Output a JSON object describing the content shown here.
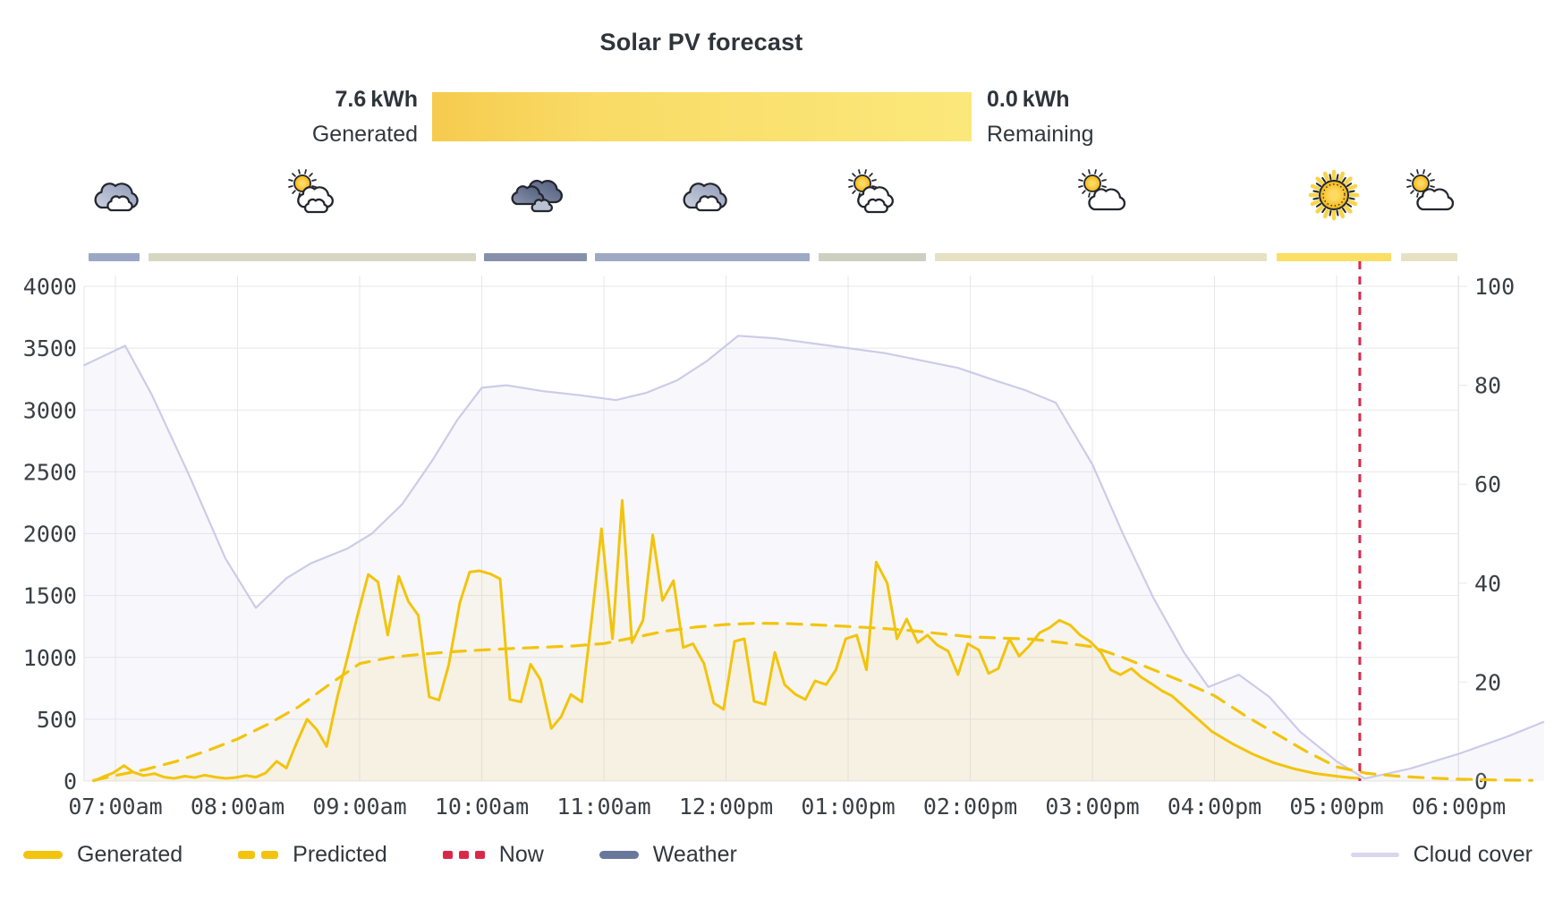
{
  "title": "Solar PV forecast",
  "progress": {
    "generated_value": "7.6 kWh",
    "generated_label": "Generated",
    "remaining_value": "0.0 kWh",
    "remaining_label": "Remaining",
    "bar_gradient": [
      "#F6CB4E",
      "#F9DB66",
      "#FBE87B"
    ]
  },
  "weather": {
    "segments": [
      {
        "icon": "cloudy-icon",
        "type": "cloudy",
        "start_hour": 6.78,
        "end_hour": 7.2,
        "bar_color": "#9BA7C4"
      },
      {
        "icon": "partly-sunny-icon",
        "type": "partly-sunny",
        "start_hour": 7.27,
        "end_hour": 9.95,
        "bar_color": "#D6D7C3"
      },
      {
        "icon": "dark-clouds-icon",
        "type": "dark-cloudy",
        "start_hour": 10.02,
        "end_hour": 10.86,
        "bar_color": "#8690AC"
      },
      {
        "icon": "cloudy-icon",
        "type": "cloudy",
        "start_hour": 10.93,
        "end_hour": 12.69,
        "bar_color": "#9EA9C4"
      },
      {
        "icon": "partly-sunny-icon",
        "type": "partly-sunny",
        "start_hour": 12.76,
        "end_hour": 13.64,
        "bar_color": "#CDD0C0"
      },
      {
        "icon": "mostly-sunny-icon",
        "type": "mostly-sunny",
        "start_hour": 13.71,
        "end_hour": 16.43,
        "bar_color": "#E7E1C4"
      },
      {
        "icon": "sunny-icon",
        "type": "sunny",
        "start_hour": 16.51,
        "end_hour": 17.45,
        "bar_color": "#FBDE64"
      },
      {
        "icon": "mostly-sunny-icon",
        "type": "mostly-sunny",
        "start_hour": 17.53,
        "end_hour": 17.99,
        "bar_color": "#E7E1C4"
      }
    ]
  },
  "chart_data": {
    "type": "line",
    "title": "Solar PV forecast",
    "x_domain_hours": [
      6.74,
      18.78
    ],
    "x_ticks": [
      {
        "hour": 7,
        "label": "07:00am"
      },
      {
        "hour": 8,
        "label": "08:00am"
      },
      {
        "hour": 9,
        "label": "09:00am"
      },
      {
        "hour": 10,
        "label": "10:00am"
      },
      {
        "hour": 11,
        "label": "11:00am"
      },
      {
        "hour": 12,
        "label": "12:00pm"
      },
      {
        "hour": 13,
        "label": "01:00pm"
      },
      {
        "hour": 14,
        "label": "02:00pm"
      },
      {
        "hour": 15,
        "label": "03:00pm"
      },
      {
        "hour": 16,
        "label": "04:00pm"
      },
      {
        "hour": 17,
        "label": "05:00pm"
      },
      {
        "hour": 18,
        "label": "06:00pm"
      }
    ],
    "left_axis": {
      "min": 0,
      "max": 4000,
      "ticks": [
        0,
        500,
        1000,
        1500,
        2000,
        2500,
        3000,
        3500,
        4000
      ]
    },
    "right_axis": {
      "min": 0,
      "max": 100,
      "ticks": [
        0,
        20,
        40,
        60,
        80,
        100
      ]
    },
    "grid": true,
    "now": {
      "hour": 17.19,
      "label": "Now",
      "color": "#D9294B"
    },
    "series": [
      {
        "name": "Generated",
        "axis": "left",
        "style": "solid",
        "color": "#F2C40D",
        "fill": "rgba(244,205,70,0.08)",
        "points": [
          [
            6.82,
            0
          ],
          [
            6.9,
            35
          ],
          [
            6.98,
            65
          ],
          [
            7.07,
            125
          ],
          [
            7.15,
            70
          ],
          [
            7.23,
            45
          ],
          [
            7.32,
            60
          ],
          [
            7.4,
            32
          ],
          [
            7.48,
            22
          ],
          [
            7.57,
            40
          ],
          [
            7.65,
            28
          ],
          [
            7.73,
            48
          ],
          [
            7.82,
            32
          ],
          [
            7.9,
            22
          ],
          [
            7.98,
            28
          ],
          [
            8.07,
            45
          ],
          [
            8.15,
            32
          ],
          [
            8.23,
            65
          ],
          [
            8.32,
            160
          ],
          [
            8.4,
            105
          ],
          [
            8.48,
            300
          ],
          [
            8.57,
            500
          ],
          [
            8.65,
            415
          ],
          [
            8.73,
            280
          ],
          [
            8.82,
            690
          ],
          [
            8.9,
            1000
          ],
          [
            8.98,
            1330
          ],
          [
            9.07,
            1670
          ],
          [
            9.15,
            1610
          ],
          [
            9.23,
            1180
          ],
          [
            9.32,
            1655
          ],
          [
            9.4,
            1450
          ],
          [
            9.48,
            1340
          ],
          [
            9.57,
            680
          ],
          [
            9.65,
            655
          ],
          [
            9.73,
            940
          ],
          [
            9.82,
            1440
          ],
          [
            9.9,
            1690
          ],
          [
            9.98,
            1700
          ],
          [
            10.07,
            1675
          ],
          [
            10.15,
            1635
          ],
          [
            10.23,
            660
          ],
          [
            10.32,
            640
          ],
          [
            10.4,
            945
          ],
          [
            10.48,
            820
          ],
          [
            10.57,
            425
          ],
          [
            10.65,
            520
          ],
          [
            10.73,
            700
          ],
          [
            10.82,
            640
          ],
          [
            10.9,
            1310
          ],
          [
            10.98,
            2040
          ],
          [
            11.07,
            1150
          ],
          [
            11.15,
            2270
          ],
          [
            11.23,
            1120
          ],
          [
            11.32,
            1300
          ],
          [
            11.4,
            1990
          ],
          [
            11.48,
            1460
          ],
          [
            11.57,
            1620
          ],
          [
            11.65,
            1080
          ],
          [
            11.73,
            1110
          ],
          [
            11.82,
            950
          ],
          [
            11.9,
            630
          ],
          [
            11.98,
            580
          ],
          [
            12.07,
            1130
          ],
          [
            12.15,
            1150
          ],
          [
            12.23,
            645
          ],
          [
            12.32,
            620
          ],
          [
            12.4,
            1040
          ],
          [
            12.48,
            780
          ],
          [
            12.57,
            700
          ],
          [
            12.65,
            660
          ],
          [
            12.73,
            810
          ],
          [
            12.82,
            780
          ],
          [
            12.9,
            900
          ],
          [
            12.98,
            1150
          ],
          [
            13.07,
            1180
          ],
          [
            13.15,
            900
          ],
          [
            13.23,
            1770
          ],
          [
            13.32,
            1600
          ],
          [
            13.4,
            1150
          ],
          [
            13.48,
            1310
          ],
          [
            13.57,
            1120
          ],
          [
            13.65,
            1180
          ],
          [
            13.73,
            1100
          ],
          [
            13.82,
            1050
          ],
          [
            13.9,
            860
          ],
          [
            13.98,
            1110
          ],
          [
            14.07,
            1060
          ],
          [
            14.15,
            870
          ],
          [
            14.23,
            910
          ],
          [
            14.32,
            1150
          ],
          [
            14.4,
            1010
          ],
          [
            14.48,
            1090
          ],
          [
            14.57,
            1200
          ],
          [
            14.65,
            1240
          ],
          [
            14.73,
            1300
          ],
          [
            14.82,
            1260
          ],
          [
            14.9,
            1180
          ],
          [
            14.98,
            1130
          ],
          [
            15.07,
            1040
          ],
          [
            15.15,
            900
          ],
          [
            15.23,
            860
          ],
          [
            15.32,
            910
          ],
          [
            15.4,
            840
          ],
          [
            15.48,
            790
          ],
          [
            15.57,
            730
          ],
          [
            15.65,
            690
          ],
          [
            15.73,
            620
          ],
          [
            15.82,
            540
          ],
          [
            15.9,
            470
          ],
          [
            15.98,
            400
          ],
          [
            16.15,
            300
          ],
          [
            16.32,
            215
          ],
          [
            16.48,
            150
          ],
          [
            16.65,
            100
          ],
          [
            16.82,
            62
          ],
          [
            16.98,
            42
          ],
          [
            17.1,
            28
          ],
          [
            17.19,
            22
          ]
        ]
      },
      {
        "name": "Predicted",
        "axis": "left",
        "style": "dashed",
        "color": "#F2C40D",
        "fill": "rgba(244,205,70,0.06)",
        "points": [
          [
            6.82,
            5
          ],
          [
            7.0,
            45
          ],
          [
            7.25,
            95
          ],
          [
            7.5,
            160
          ],
          [
            7.75,
            245
          ],
          [
            8.0,
            340
          ],
          [
            8.25,
            460
          ],
          [
            8.5,
            600
          ],
          [
            8.75,
            780
          ],
          [
            9.0,
            950
          ],
          [
            9.25,
            1000
          ],
          [
            9.5,
            1025
          ],
          [
            9.75,
            1045
          ],
          [
            10.0,
            1060
          ],
          [
            10.25,
            1072
          ],
          [
            10.5,
            1082
          ],
          [
            10.75,
            1092
          ],
          [
            11.0,
            1112
          ],
          [
            11.25,
            1160
          ],
          [
            11.5,
            1212
          ],
          [
            11.75,
            1245
          ],
          [
            12.0,
            1266
          ],
          [
            12.25,
            1276
          ],
          [
            12.5,
            1273
          ],
          [
            12.75,
            1262
          ],
          [
            13.0,
            1250
          ],
          [
            13.25,
            1236
          ],
          [
            13.5,
            1218
          ],
          [
            13.75,
            1192
          ],
          [
            14.0,
            1166
          ],
          [
            14.25,
            1156
          ],
          [
            14.5,
            1148
          ],
          [
            14.75,
            1120
          ],
          [
            15.0,
            1086
          ],
          [
            15.25,
            1000
          ],
          [
            15.5,
            900
          ],
          [
            15.75,
            800
          ],
          [
            16.0,
            690
          ],
          [
            16.25,
            530
          ],
          [
            16.5,
            385
          ],
          [
            16.75,
            240
          ],
          [
            17.0,
            115
          ],
          [
            17.25,
            62
          ],
          [
            17.5,
            40
          ],
          [
            17.75,
            25
          ],
          [
            18.0,
            15
          ],
          [
            18.3,
            9
          ],
          [
            18.6,
            6
          ]
        ]
      },
      {
        "name": "Cloud cover",
        "axis": "right",
        "style": "solid",
        "color": "#CDCBE8",
        "fill": "rgba(205,203,232,0.14)",
        "points": [
          [
            6.74,
            84
          ],
          [
            7.08,
            88
          ],
          [
            7.3,
            78
          ],
          [
            7.6,
            62
          ],
          [
            7.9,
            45
          ],
          [
            8.15,
            35
          ],
          [
            8.4,
            41
          ],
          [
            8.6,
            44
          ],
          [
            8.9,
            47
          ],
          [
            9.1,
            50
          ],
          [
            9.35,
            56
          ],
          [
            9.6,
            65
          ],
          [
            9.8,
            73
          ],
          [
            10.0,
            79.5
          ],
          [
            10.2,
            80
          ],
          [
            10.5,
            78.8
          ],
          [
            10.8,
            78
          ],
          [
            11.1,
            77
          ],
          [
            11.35,
            78.5
          ],
          [
            11.6,
            81
          ],
          [
            11.85,
            85
          ],
          [
            12.1,
            90
          ],
          [
            12.4,
            89.5
          ],
          [
            12.7,
            88.5
          ],
          [
            13.0,
            87.5
          ],
          [
            13.3,
            86.5
          ],
          [
            13.6,
            85
          ],
          [
            13.9,
            83.5
          ],
          [
            14.2,
            81
          ],
          [
            14.45,
            79
          ],
          [
            14.7,
            76.5
          ],
          [
            15.0,
            64
          ],
          [
            15.25,
            50
          ],
          [
            15.5,
            37
          ],
          [
            15.75,
            26
          ],
          [
            15.95,
            19
          ],
          [
            16.2,
            21.5
          ],
          [
            16.45,
            17
          ],
          [
            16.7,
            10
          ],
          [
            17.0,
            4
          ],
          [
            17.23,
            0.5
          ],
          [
            17.6,
            2.5
          ],
          [
            18.0,
            5.5
          ],
          [
            18.4,
            9
          ],
          [
            18.7,
            12
          ]
        ]
      }
    ]
  },
  "legend": {
    "items": [
      {
        "id": "generated",
        "label": "Generated",
        "swatch": "line",
        "color": "#F2C40D"
      },
      {
        "id": "predicted",
        "label": "Predicted",
        "swatch": "dashes",
        "color": "#F2C40D"
      },
      {
        "id": "now",
        "label": "Now",
        "swatch": "dots",
        "color": "#D9294B"
      },
      {
        "id": "weather",
        "label": "Weather",
        "swatch": "line",
        "color": "#68779B"
      }
    ],
    "right_item": {
      "id": "cloud-cover",
      "label": "Cloud cover",
      "swatch": "thin-line",
      "color": "#D9D7EE"
    }
  }
}
